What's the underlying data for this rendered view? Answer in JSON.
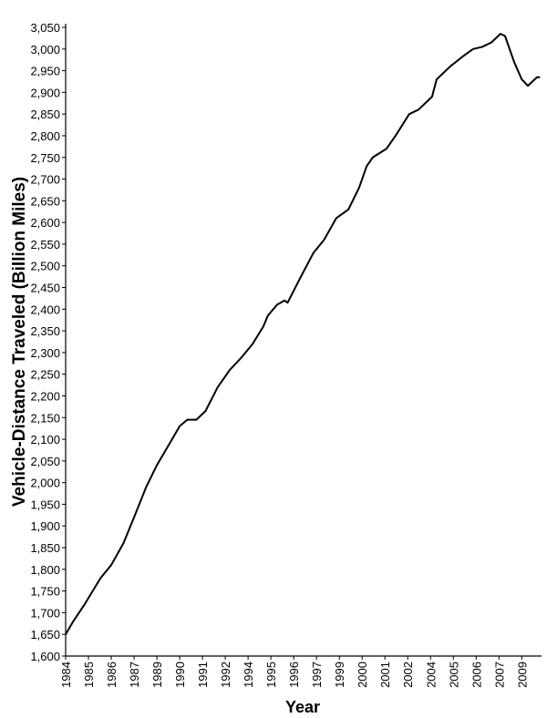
{
  "chart_data": {
    "type": "line",
    "x_label": "Year",
    "y_label": "Vehicle-Distance Traveled (Billion Miles)",
    "x": [
      0,
      5,
      12.6,
      23,
      30,
      38,
      45,
      53,
      60,
      70,
      75,
      80,
      86,
      92,
      100,
      108,
      116,
      123,
      130,
      133,
      139,
      144,
      146,
      154,
      163,
      170,
      178,
      186,
      193,
      198,
      202,
      211,
      217,
      226,
      232,
      241,
      244,
      253,
      262,
      268,
      274,
      280,
      286,
      289,
      295,
      300,
      304,
      310,
      312
    ],
    "series": [
      {
        "name": "Vehicle-Distance Traveled",
        "color": "#000000",
        "values": [
          1650,
          1680,
          1720,
          1780,
          1810,
          1860,
          1920,
          1990,
          2040,
          2100,
          2130,
          2145,
          2145,
          2165,
          2220,
          2260,
          2290,
          2320,
          2360,
          2385,
          2410,
          2420,
          2415,
          2470,
          2530,
          2560,
          2610,
          2630,
          2680,
          2730,
          2750,
          2770,
          2800,
          2850,
          2860,
          2890,
          2930,
          2960,
          2985,
          3000,
          3005,
          3015,
          3035,
          3030,
          2970,
          2930,
          2915,
          2935,
          2935
        ]
      }
    ],
    "xlim": [
      0,
      313
    ],
    "xticks": [
      {
        "value": 0,
        "label": "1984"
      },
      {
        "value": 15,
        "label": "1985"
      },
      {
        "value": 30,
        "label": "1986"
      },
      {
        "value": 45,
        "label": "1987"
      },
      {
        "value": 60,
        "label": "1989"
      },
      {
        "value": 75,
        "label": "1990"
      },
      {
        "value": 90,
        "label": "1991"
      },
      {
        "value": 105,
        "label": "1992"
      },
      {
        "value": 120,
        "label": "1994"
      },
      {
        "value": 135,
        "label": "1995"
      },
      {
        "value": 150,
        "label": "1996"
      },
      {
        "value": 165,
        "label": "1997"
      },
      {
        "value": 180,
        "label": "1999"
      },
      {
        "value": 195,
        "label": "2000"
      },
      {
        "value": 210,
        "label": "2001"
      },
      {
        "value": 225,
        "label": "2002"
      },
      {
        "value": 240,
        "label": "2004"
      },
      {
        "value": 255,
        "label": "2005"
      },
      {
        "value": 270,
        "label": "2006"
      },
      {
        "value": 285,
        "label": "2007"
      },
      {
        "value": 300,
        "label": "2009"
      }
    ],
    "ylim": [
      1600,
      3050
    ],
    "yticks": [
      {
        "value": 1600,
        "label": "1,600"
      },
      {
        "value": 1650,
        "label": "1,650"
      },
      {
        "value": 1700,
        "label": "1,700"
      },
      {
        "value": 1750,
        "label": "1,750"
      },
      {
        "value": 1800,
        "label": "1,800"
      },
      {
        "value": 1850,
        "label": "1,850"
      },
      {
        "value": 1900,
        "label": "1,900"
      },
      {
        "value": 1950,
        "label": "1,950"
      },
      {
        "value": 2000,
        "label": "2,000"
      },
      {
        "value": 2050,
        "label": "2,050"
      },
      {
        "value": 2100,
        "label": "2,100"
      },
      {
        "value": 2150,
        "label": "2,150"
      },
      {
        "value": 2200,
        "label": "2,200"
      },
      {
        "value": 2250,
        "label": "2,250"
      },
      {
        "value": 2300,
        "label": "2,300"
      },
      {
        "value": 2350,
        "label": "2,350"
      },
      {
        "value": 2400,
        "label": "2,400"
      },
      {
        "value": 2450,
        "label": "2,450"
      },
      {
        "value": 2500,
        "label": "2,500"
      },
      {
        "value": 2550,
        "label": "2,550"
      },
      {
        "value": 2600,
        "label": "2,600"
      },
      {
        "value": 2650,
        "label": "2,650"
      },
      {
        "value": 2700,
        "label": "2,700"
      },
      {
        "value": 2750,
        "label": "2,750"
      },
      {
        "value": 2800,
        "label": "2,800"
      },
      {
        "value": 2850,
        "label": "2,850"
      },
      {
        "value": 2900,
        "label": "2,900"
      },
      {
        "value": 2950,
        "label": "2,950"
      },
      {
        "value": 3000,
        "label": "3,000"
      },
      {
        "value": 3050,
        "label": "3,050"
      }
    ],
    "grid": false
  }
}
